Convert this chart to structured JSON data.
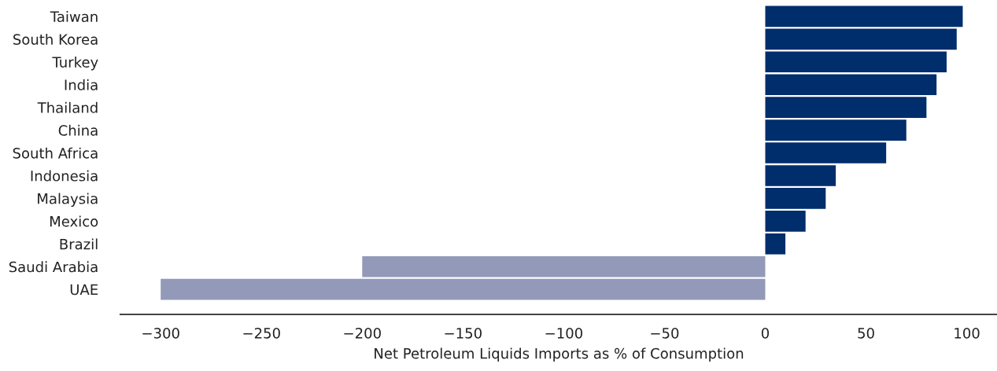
{
  "chart_data": {
    "type": "bar",
    "orientation": "horizontal",
    "xlabel": "Net Petroleum Liquids Imports as % of Consumption",
    "categories": [
      "Taiwan",
      "South Korea",
      "Turkey",
      "India",
      "Thailand",
      "China",
      "South Africa",
      "Indonesia",
      "Malaysia",
      "Mexico",
      "Brazil",
      "Saudi Arabia",
      "UAE"
    ],
    "values": [
      98,
      95,
      90,
      85,
      80,
      70,
      60,
      35,
      30,
      20,
      10,
      -200,
      -300
    ],
    "colors": [
      "#002d6b",
      "#002d6b",
      "#002d6b",
      "#002d6b",
      "#002d6b",
      "#002d6b",
      "#002d6b",
      "#002d6b",
      "#002d6b",
      "#002d6b",
      "#002d6b",
      "#9399b8",
      "#9399b8"
    ],
    "xlim": [
      -320,
      115
    ],
    "xticks": [
      {
        "value": -300,
        "label": "−300"
      },
      {
        "value": -250,
        "label": "−250"
      },
      {
        "value": -200,
        "label": "−200"
      },
      {
        "value": -150,
        "label": "−150"
      },
      {
        "value": -100,
        "label": "−100"
      },
      {
        "value": -50,
        "label": "−50"
      },
      0,
      50,
      100
    ],
    "grid": false,
    "legend": false
  }
}
